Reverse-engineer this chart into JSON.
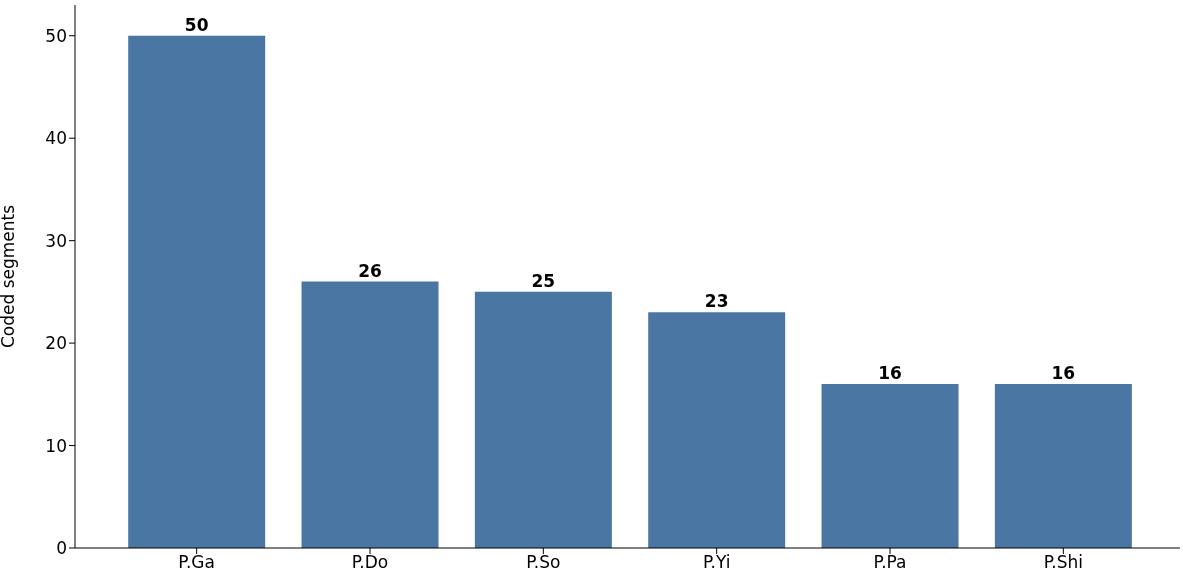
{
  "chart_data": {
    "type": "bar",
    "ylabel": "Coded segments",
    "categories": [
      "P.Ga",
      "P.Do",
      "P.So",
      "P.Yi",
      "P.Pa",
      "P.Shi"
    ],
    "values": [
      50,
      26,
      25,
      23,
      16,
      16
    ],
    "color": "#4a76a3",
    "ylim": [
      0,
      53
    ],
    "yticks": [
      0,
      10,
      20,
      30,
      40,
      50
    ],
    "grid": false,
    "data_labels": true
  }
}
